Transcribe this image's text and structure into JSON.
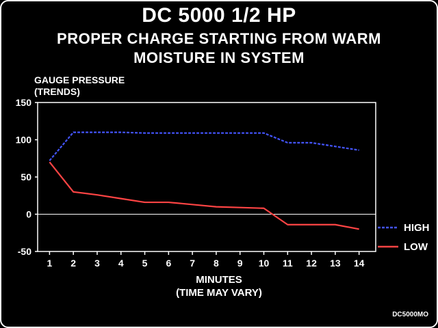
{
  "title_line1": "DC 5000 1/2 HP",
  "title_line2": "PROPER CHARGE STARTING FROM WARM",
  "title_line3": "MOISTURE IN SYSTEM",
  "ylabel_line1": "GAUGE PRESSURE",
  "ylabel_line2": "(TRENDS)",
  "xlabel_line1": "MINUTES",
  "xlabel_line2": "(TIME MAY VARY)",
  "figure_code": "DC5000MO",
  "colors": {
    "high": "#4455ff",
    "low": "#ff4444",
    "axis": "#ffffff",
    "background": "#000000"
  },
  "chart_data": {
    "type": "line",
    "x": [
      1,
      2,
      3,
      4,
      5,
      6,
      7,
      8,
      9,
      10,
      11,
      12,
      13,
      14
    ],
    "xlim": [
      0.5,
      14.7
    ],
    "ylim": [
      -50,
      150
    ],
    "yticks": [
      150,
      100,
      50,
      0,
      -50
    ],
    "xticks": [
      1,
      2,
      3,
      4,
      5,
      6,
      7,
      8,
      9,
      10,
      11,
      12,
      13,
      14
    ],
    "grid": false,
    "legend_position": "right",
    "series": [
      {
        "name": "HIGH",
        "style": "dashed",
        "color": "#4455ff",
        "values": [
          72,
          110,
          110,
          110,
          109,
          109,
          109,
          109,
          109,
          109,
          96,
          96,
          91,
          86
        ]
      },
      {
        "name": "LOW",
        "style": "solid",
        "color": "#ff4444",
        "values": [
          70,
          30,
          26,
          21,
          16,
          16,
          13,
          10,
          9,
          8,
          -14,
          -14,
          -14,
          -20
        ]
      }
    ]
  }
}
